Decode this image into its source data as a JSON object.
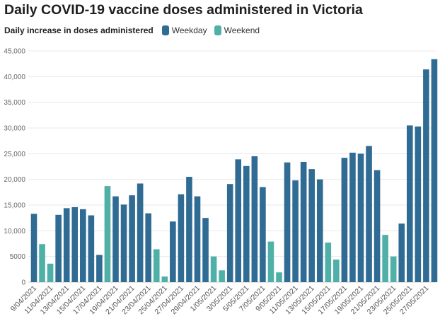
{
  "title": "Daily COVID-19 vaccine doses administered in Victoria",
  "legend": {
    "title": "Daily increase in doses administered",
    "items": [
      {
        "label": "Weekday",
        "color": "#2f6b93"
      },
      {
        "label": "Weekend",
        "color": "#4fb0a8"
      }
    ]
  },
  "chart_data": {
    "type": "bar",
    "title": "Daily COVID-19 vaccine doses administered in Victoria",
    "ylabel": "Daily increase in doses administered",
    "ylim": [
      0,
      45000
    ],
    "yticks": [
      0,
      5000,
      10000,
      15000,
      20000,
      25000,
      30000,
      35000,
      40000,
      45000
    ],
    "ytick_labels": [
      "0",
      "5000",
      "10,000",
      "15,000",
      "20,000",
      "25,000",
      "30,000",
      "35,000",
      "40,000",
      "45,000"
    ],
    "grid": true,
    "legend_position": "top",
    "categories": [
      "9/04/2021",
      "10/04/2021",
      "11/04/2021",
      "12/04/2021",
      "13/04/2021",
      "14/04/2021",
      "15/04/2021",
      "16/04/2021",
      "17/04/2021",
      "18/04/2021",
      "19/04/2021",
      "20/04/2021",
      "21/04/2021",
      "22/04/2021",
      "23/04/2021",
      "24/04/2021",
      "25/04/2021",
      "26/04/2021",
      "27/04/2021",
      "28/04/2021",
      "29/04/2021",
      "30/04/2021",
      "1/05/2021",
      "2/05/2021",
      "3/05/2021",
      "4/05/2021",
      "5/05/2021",
      "6/05/2021",
      "7/05/2021",
      "8/05/2021",
      "9/05/2021",
      "10/05/2021",
      "11/05/2021",
      "12/05/2021",
      "13/05/2021",
      "14/05/2021",
      "15/05/2021",
      "16/05/2021",
      "17/05/2021",
      "18/05/2021",
      "19/05/2021",
      "20/05/2021",
      "21/05/2021",
      "22/05/2021",
      "23/05/2021",
      "24/05/2021",
      "25/05/2021",
      "26/05/2021",
      "27/05/2021",
      "28/05/2021"
    ],
    "shown_tick_labels": [
      "9/04/2021",
      "11/04/2021",
      "13/04/2021",
      "15/04/2021",
      "17/04/2021",
      "19/04/2021",
      "21/04/2021",
      "23/04/2021",
      "25/04/2021",
      "27/04/2021",
      "29/04/2021",
      "1/05/2021",
      "3/05/2021",
      "5/05/2021",
      "7/05/2021",
      "9/05/2021",
      "11/05/2021",
      "13/05/2021",
      "15/05/2021",
      "17/05/2021",
      "19/05/2021",
      "21/05/2021",
      "23/05/2021",
      "25/05/2021",
      "27/05/2021"
    ],
    "values": [
      13300,
      7400,
      3600,
      13100,
      14400,
      14600,
      14200,
      13000,
      5300,
      18700,
      16700,
      15100,
      16900,
      19200,
      13400,
      6400,
      1100,
      11800,
      17100,
      20500,
      16700,
      12500,
      5000,
      2300,
      19100,
      23900,
      22600,
      24500,
      18500,
      7900,
      1900,
      23300,
      19800,
      23400,
      22000,
      20000,
      7700,
      4400,
      24200,
      25200,
      25000,
      26500,
      21800,
      9200,
      5000,
      11400,
      30500,
      30300,
      41400,
      43400
    ],
    "series_type": [
      "Weekday",
      "Weekend",
      "Weekend",
      "Weekday",
      "Weekday",
      "Weekday",
      "Weekday",
      "Weekday",
      "Weekday",
      "Weekend",
      "Weekday",
      "Weekday",
      "Weekday",
      "Weekday",
      "Weekday",
      "Weekend",
      "Weekend",
      "Weekday",
      "Weekday",
      "Weekday",
      "Weekday",
      "Weekday",
      "Weekend",
      "Weekend",
      "Weekday",
      "Weekday",
      "Weekday",
      "Weekday",
      "Weekday",
      "Weekend",
      "Weekend",
      "Weekday",
      "Weekday",
      "Weekday",
      "Weekday",
      "Weekday",
      "Weekend",
      "Weekend",
      "Weekday",
      "Weekday",
      "Weekday",
      "Weekday",
      "Weekday",
      "Weekend",
      "Weekend",
      "Weekday",
      "Weekday",
      "Weekday",
      "Weekday",
      "Weekday"
    ]
  }
}
